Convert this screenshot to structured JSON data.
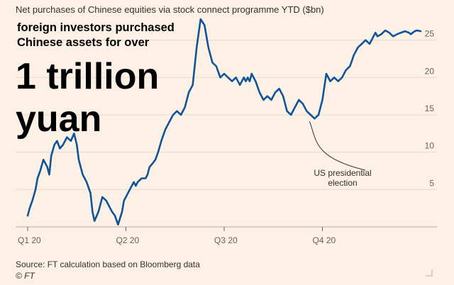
{
  "chart_data": {
    "type": "line",
    "title": "Net purchases of Chinese equities via stock connect programme YTD ($bn)",
    "x_ticks": [
      "Q1 20",
      "Q2 20",
      "Q3 20",
      "Q4 20"
    ],
    "y_ticks": [
      5,
      10,
      15,
      20,
      25
    ],
    "ylim": [
      0,
      28
    ],
    "xlim": [
      0,
      1
    ],
    "grid": "horizontal",
    "line_color": "#0f5499",
    "series": [
      {
        "x": [
          0,
          0.005,
          0.012,
          0.02,
          0.025,
          0.032,
          0.04,
          0.05,
          0.055,
          0.06,
          0.068,
          0.075,
          0.082,
          0.09,
          0.1,
          0.11,
          0.118,
          0.125,
          0.13,
          0.14,
          0.15,
          0.16,
          0.165,
          0.17,
          0.18,
          0.19,
          0.2,
          0.21,
          0.215,
          0.222,
          0.23,
          0.24,
          0.245,
          0.25,
          0.26,
          0.27,
          0.275,
          0.28,
          0.29,
          0.3,
          0.305,
          0.31,
          0.318,
          0.325,
          0.332,
          0.34,
          0.35,
          0.36,
          0.37,
          0.38,
          0.39,
          0.4,
          0.41,
          0.42,
          0.43,
          0.44,
          0.45,
          0.46,
          0.47,
          0.48,
          0.49,
          0.5,
          0.51,
          0.52,
          0.53,
          0.54,
          0.55,
          0.555,
          0.56,
          0.565,
          0.57,
          0.575,
          0.58,
          0.59,
          0.6,
          0.61,
          0.62,
          0.63,
          0.64,
          0.65,
          0.66,
          0.67,
          0.68,
          0.69,
          0.7,
          0.71,
          0.72,
          0.73,
          0.74,
          0.75,
          0.76,
          0.77,
          0.78,
          0.79,
          0.8,
          0.81,
          0.82,
          0.83,
          0.84,
          0.85,
          0.86,
          0.87,
          0.875,
          0.88,
          0.885,
          0.89,
          0.9,
          0.91,
          0.92,
          0.93,
          0.94,
          0.95,
          0.96,
          0.97,
          0.975,
          0.98,
          0.985,
          0.99,
          1
        ],
        "y": [
          1.5,
          2.5,
          3.5,
          5,
          6.5,
          7.5,
          9,
          8,
          7,
          9.5,
          11,
          11.5,
          10.5,
          11,
          12,
          11.5,
          12.5,
          11,
          9,
          7,
          6,
          4.5,
          2,
          0.8,
          2,
          4,
          3.5,
          2.5,
          2,
          1.5,
          0.3,
          2,
          3.5,
          4,
          5,
          6,
          5.5,
          6,
          6.5,
          6.5,
          7,
          8,
          8.5,
          9,
          10,
          11.5,
          13,
          14,
          15,
          15.5,
          15,
          16,
          18,
          19,
          24,
          27.8,
          27,
          24,
          22,
          21.5,
          20,
          20.5,
          20,
          19.5,
          20,
          19,
          20,
          19.5,
          20,
          19.5,
          20.5,
          20,
          19.5,
          18,
          17,
          17.5,
          17,
          18,
          18.5,
          17.5,
          15.5,
          15,
          16,
          17,
          16.5,
          15.5,
          15,
          14.5,
          15,
          17,
          20.5,
          19.5,
          20,
          19.5,
          20,
          21,
          21.5,
          23,
          24,
          24.5,
          25,
          24.5,
          25,
          25.5,
          26,
          25.5,
          25.8,
          26.3,
          26,
          25.5,
          25.8,
          26,
          26.2,
          26,
          25.8,
          26,
          26.2,
          26.3,
          26.2
        ]
      }
    ],
    "annotation": {
      "label": [
        "US presidential",
        "election"
      ],
      "target_x": 0.71,
      "target_y": 14.5
    }
  },
  "overlay": {
    "line1": "foreign investors purchased",
    "line2": "Chinese assets for over",
    "big1": "1 trillion",
    "big2": "yuan"
  },
  "footer": {
    "source": "Source: FT calculation based on Bloomberg data",
    "credit": "© FT"
  }
}
